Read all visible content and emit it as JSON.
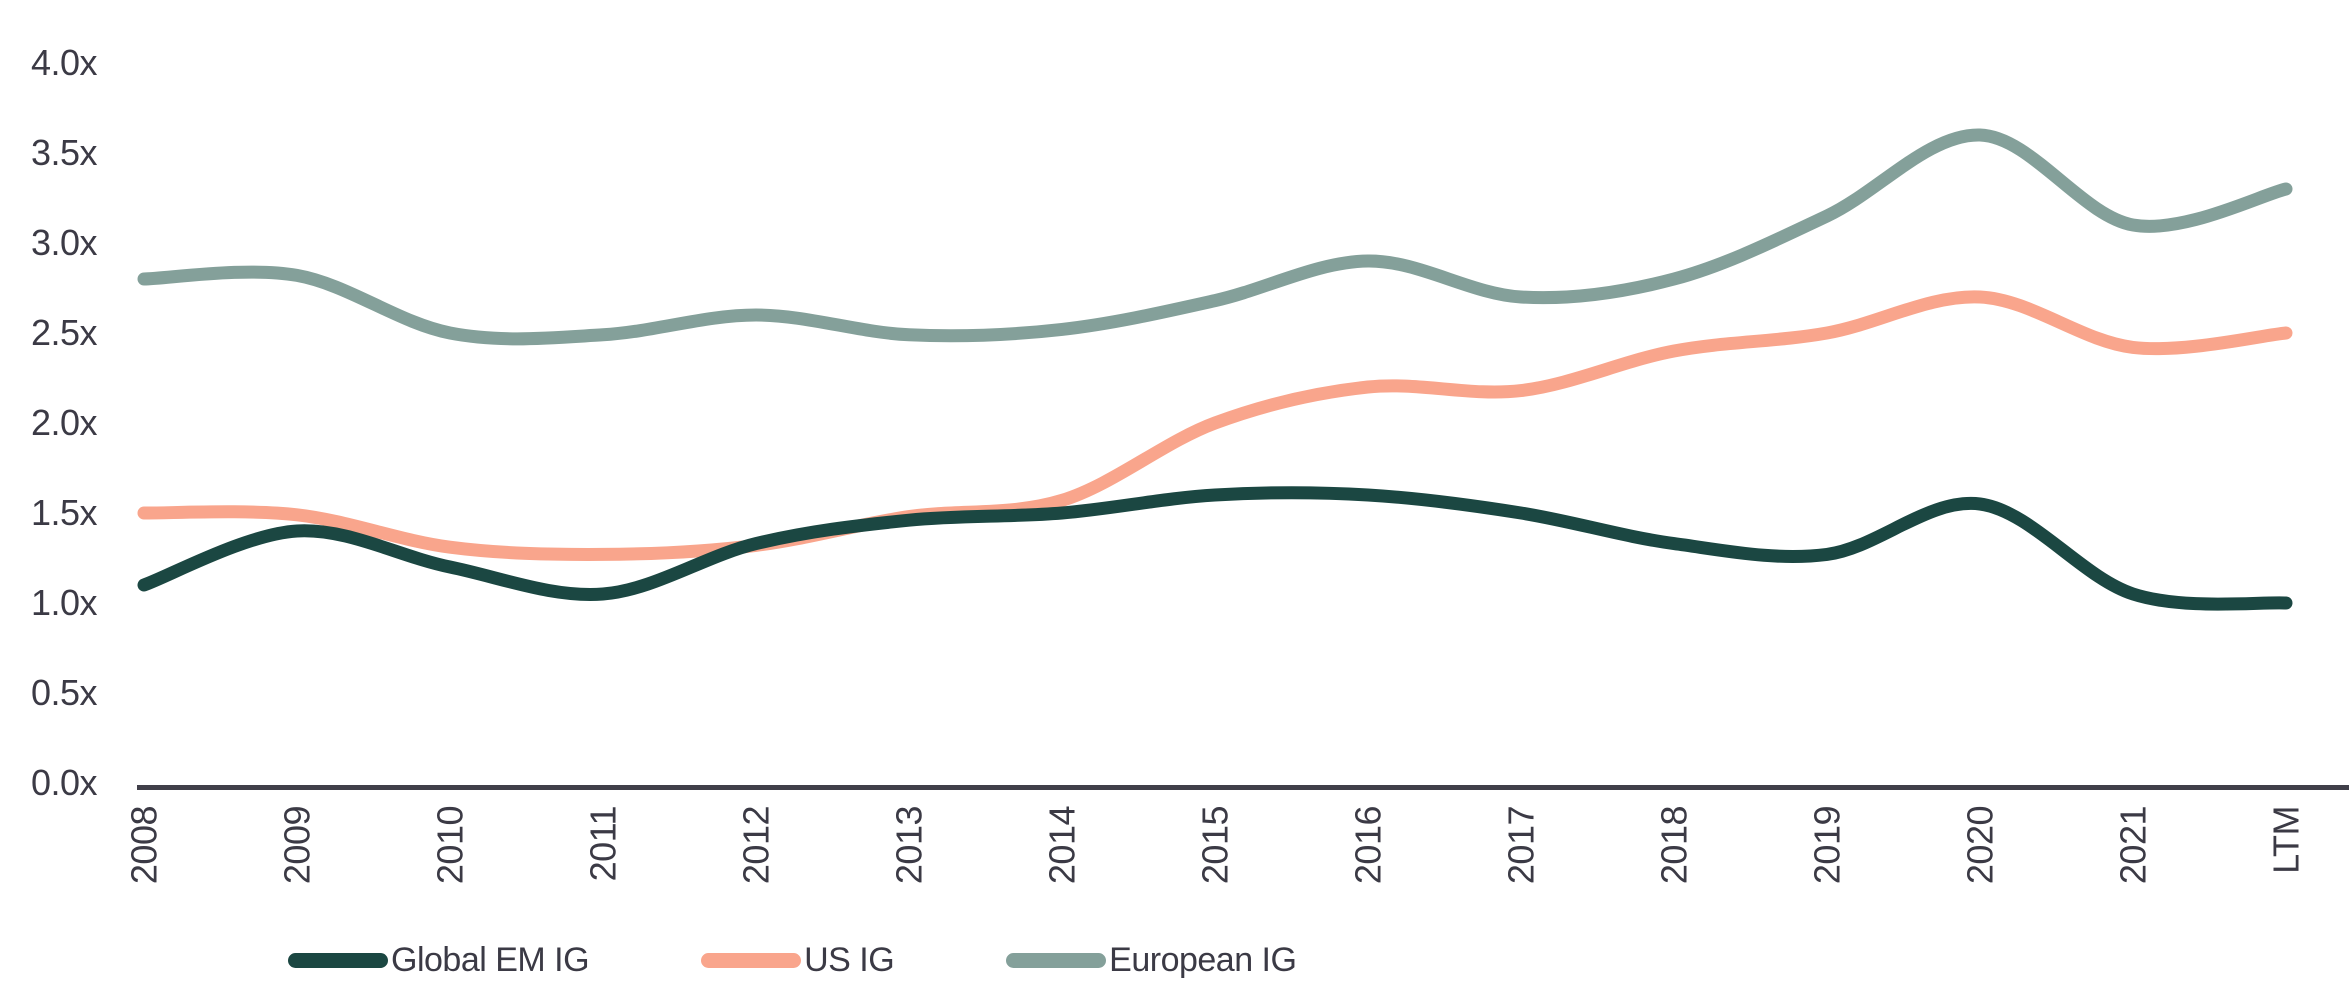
{
  "chart_data": {
    "type": "line",
    "title": "",
    "xlabel": "",
    "ylabel": "",
    "x": [
      "2008",
      "2009",
      "2010",
      "2011",
      "2012",
      "2013",
      "2014",
      "2015",
      "2016",
      "2017",
      "2018",
      "2019",
      "2020",
      "2021",
      "LTM"
    ],
    "series": [
      {
        "name": "Global EM IG",
        "color": "#1B4742",
        "values": [
          1.1,
          1.4,
          1.2,
          1.05,
          1.33,
          1.46,
          1.5,
          1.6,
          1.6,
          1.5,
          1.33,
          1.27,
          1.55,
          1.05,
          1.0
        ]
      },
      {
        "name": "US IG",
        "color": "#F9A58C",
        "values": [
          1.5,
          1.49,
          1.31,
          1.27,
          1.32,
          1.48,
          1.57,
          2.0,
          2.2,
          2.18,
          2.4,
          2.5,
          2.7,
          2.42,
          2.5
        ]
      },
      {
        "name": "European IG",
        "color": "#84A09A",
        "values": [
          2.8,
          2.82,
          2.5,
          2.49,
          2.6,
          2.49,
          2.52,
          2.68,
          2.9,
          2.7,
          2.8,
          3.15,
          3.6,
          3.1,
          3.3
        ]
      }
    ],
    "y_ticks": [
      "0.0x",
      "0.5x",
      "1.0x",
      "1.5x",
      "2.0x",
      "2.5x",
      "3.0x",
      "3.5x",
      "4.0x"
    ],
    "ylim": [
      0,
      4
    ],
    "y_tick_step": 0.5,
    "grid": false,
    "legend_position": "bottom-left",
    "line_style": "smooth",
    "x_label_rotation": -90
  },
  "colors": {
    "background": "#FFFFFF",
    "text": "#3B3A45",
    "axis_line": "#403F49"
  }
}
